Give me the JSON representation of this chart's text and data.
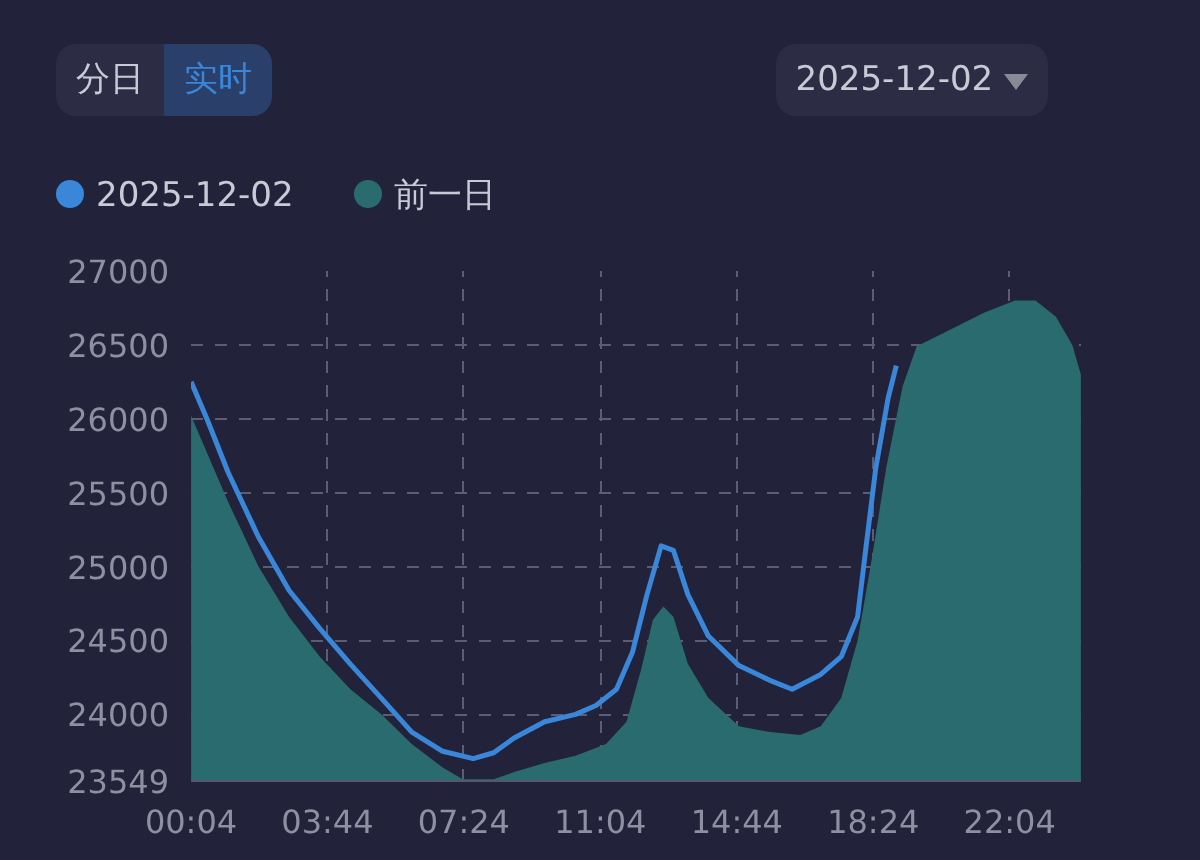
{
  "chart_data": {
    "type": "line",
    "annotations": [
      "分日",
      "实时",
      "2025-12-02"
    ],
    "xlim": [
      0.067,
      23.983
    ],
    "xticks": [
      {
        "value": 0.067,
        "label": "00:04"
      },
      {
        "value": 3.733,
        "label": "03:44"
      },
      {
        "value": 7.4,
        "label": "07:24"
      },
      {
        "value": 11.067,
        "label": "11:04"
      },
      {
        "value": 14.733,
        "label": "14:44"
      },
      {
        "value": 18.4,
        "label": "18:24"
      },
      {
        "value": 22.067,
        "label": "22:04"
      }
    ],
    "ylim": [
      23549,
      27000
    ],
    "yticks": [
      23549,
      24000,
      24500,
      25000,
      25500,
      26000,
      26500,
      27000
    ],
    "grid": true,
    "legend": "top left",
    "series": [
      {
        "name": "2025-12-02",
        "color": "#3a86d8",
        "x": [
          0.07,
          0.51,
          1.06,
          1.88,
          2.7,
          3.53,
          4.35,
          5.18,
          6.0,
          6.83,
          7.65,
          8.2,
          8.75,
          9.57,
          10.4,
          10.95,
          11.5,
          11.93,
          12.32,
          12.7,
          13.03,
          13.42,
          13.97,
          14.79,
          15.62,
          16.22,
          16.99,
          17.54,
          17.98,
          18.2,
          18.47,
          18.8,
          19.02
        ],
        "values": [
          26250,
          25990,
          25640,
          25200,
          24840,
          24580,
          24340,
          24110,
          23880,
          23750,
          23700,
          23740,
          23840,
          23950,
          24000,
          24060,
          24170,
          24420,
          24810,
          25140,
          25110,
          24810,
          24530,
          24330,
          24230,
          24170,
          24270,
          24390,
          24660,
          25120,
          25670,
          26140,
          26360
        ]
      },
      {
        "name": "前一日",
        "type": "area",
        "color": "#2a6b70",
        "x": [
          0.07,
          1.06,
          1.88,
          2.7,
          3.53,
          4.35,
          5.18,
          6.0,
          6.83,
          7.37,
          8.2,
          8.75,
          9.57,
          10.4,
          11.22,
          11.77,
          12.16,
          12.48,
          12.76,
          13.03,
          13.42,
          13.97,
          14.79,
          15.62,
          16.44,
          16.99,
          17.54,
          17.98,
          18.36,
          18.75,
          19.19,
          19.57,
          20.29,
          21.39,
          22.21,
          22.76,
          23.31,
          23.75,
          23.98
        ],
        "values": [
          26020,
          25440,
          25000,
          24660,
          24390,
          24170,
          24000,
          23800,
          23640,
          23560,
          23560,
          23610,
          23670,
          23720,
          23800,
          23950,
          24300,
          24640,
          24730,
          24660,
          24340,
          24110,
          23920,
          23880,
          23860,
          23920,
          24110,
          24500,
          25050,
          25670,
          26220,
          26490,
          26580,
          26720,
          26800,
          26800,
          26690,
          26500,
          26300
        ]
      }
    ]
  }
}
